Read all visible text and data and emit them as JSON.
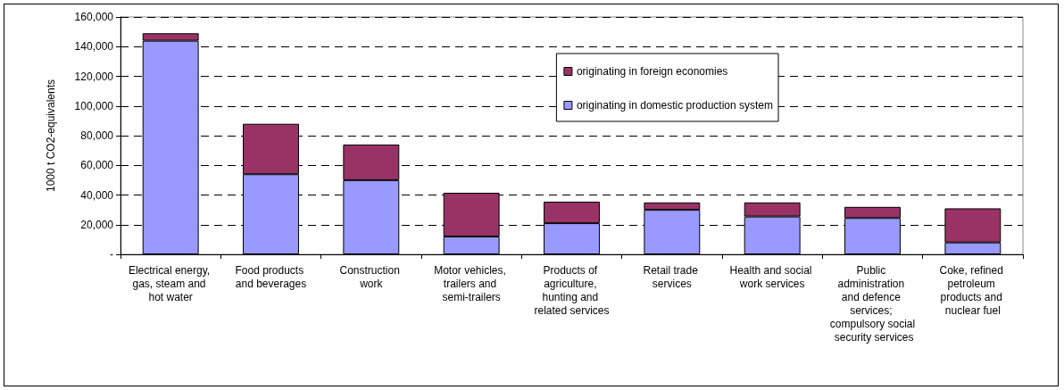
{
  "chart_data": {
    "type": "bar",
    "stacked": true,
    "ylabel": "1000 t CO2-equivalents",
    "categories": [
      "Electrical energy, gas, steam and hot water",
      "Food products and beverages",
      "Construction work",
      "Motor vehicles, trailers and semi-trailers",
      "Products of agriculture, hunting and related services",
      "Retail trade services",
      "Health and social work services",
      "Public administration and defence services; compulsory social security services",
      "Coke, refined petroleum products and nuclear fuel"
    ],
    "series": [
      {
        "name": "originating in domestic production system",
        "color": "#9999ff",
        "values": [
          144000,
          54000,
          50000,
          12000,
          21000,
          30000,
          25500,
          24500,
          8000
        ]
      },
      {
        "name": "originating in foreign economies",
        "color": "#993366",
        "values": [
          5000,
          34000,
          24000,
          29500,
          14500,
          5000,
          9500,
          7500,
          23000
        ]
      }
    ],
    "ylim": [
      0,
      160000
    ],
    "yticks": [
      {
        "value": 0,
        "label": "-"
      },
      {
        "value": 20000,
        "label": "20,000"
      },
      {
        "value": 40000,
        "label": "40,000"
      },
      {
        "value": 60000,
        "label": "60,000"
      },
      {
        "value": 80000,
        "label": "80,000"
      },
      {
        "value": 100000,
        "label": "100,000"
      },
      {
        "value": 120000,
        "label": "120,000"
      },
      {
        "value": 140000,
        "label": "140,000"
      },
      {
        "value": 160000,
        "label": "160,000"
      }
    ],
    "grid": "y",
    "legend": "top right"
  }
}
